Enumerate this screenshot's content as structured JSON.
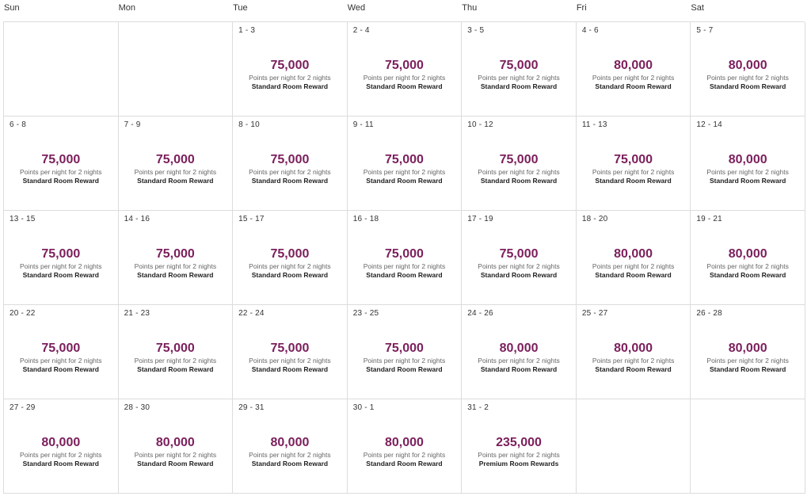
{
  "weekdays": [
    "Sun",
    "Mon",
    "Tue",
    "Wed",
    "Thu",
    "Fri",
    "Sat"
  ],
  "caption": "Points per night for 2 nights",
  "weeks": [
    [
      null,
      null,
      {
        "range": "1 - 3",
        "points": "75,000",
        "reward": "Standard Room Reward"
      },
      {
        "range": "2 - 4",
        "points": "75,000",
        "reward": "Standard Room Reward"
      },
      {
        "range": "3 - 5",
        "points": "75,000",
        "reward": "Standard Room Reward"
      },
      {
        "range": "4 - 6",
        "points": "80,000",
        "reward": "Standard Room Reward"
      },
      {
        "range": "5 - 7",
        "points": "80,000",
        "reward": "Standard Room Reward"
      }
    ],
    [
      {
        "range": "6 - 8",
        "points": "75,000",
        "reward": "Standard Room Reward"
      },
      {
        "range": "7 - 9",
        "points": "75,000",
        "reward": "Standard Room Reward"
      },
      {
        "range": "8 - 10",
        "points": "75,000",
        "reward": "Standard Room Reward"
      },
      {
        "range": "9 - 11",
        "points": "75,000",
        "reward": "Standard Room Reward"
      },
      {
        "range": "10 - 12",
        "points": "75,000",
        "reward": "Standard Room Reward"
      },
      {
        "range": "11 - 13",
        "points": "75,000",
        "reward": "Standard Room Reward"
      },
      {
        "range": "12 - 14",
        "points": "80,000",
        "reward": "Standard Room Reward"
      }
    ],
    [
      {
        "range": "13 - 15",
        "points": "75,000",
        "reward": "Standard Room Reward"
      },
      {
        "range": "14 - 16",
        "points": "75,000",
        "reward": "Standard Room Reward"
      },
      {
        "range": "15 - 17",
        "points": "75,000",
        "reward": "Standard Room Reward"
      },
      {
        "range": "16 - 18",
        "points": "75,000",
        "reward": "Standard Room Reward"
      },
      {
        "range": "17 - 19",
        "points": "75,000",
        "reward": "Standard Room Reward"
      },
      {
        "range": "18 - 20",
        "points": "80,000",
        "reward": "Standard Room Reward"
      },
      {
        "range": "19 - 21",
        "points": "80,000",
        "reward": "Standard Room Reward"
      }
    ],
    [
      {
        "range": "20 - 22",
        "points": "75,000",
        "reward": "Standard Room Reward"
      },
      {
        "range": "21 - 23",
        "points": "75,000",
        "reward": "Standard Room Reward"
      },
      {
        "range": "22 - 24",
        "points": "75,000",
        "reward": "Standard Room Reward"
      },
      {
        "range": "23 - 25",
        "points": "75,000",
        "reward": "Standard Room Reward"
      },
      {
        "range": "24 - 26",
        "points": "80,000",
        "reward": "Standard Room Reward"
      },
      {
        "range": "25 - 27",
        "points": "80,000",
        "reward": "Standard Room Reward"
      },
      {
        "range": "26 - 28",
        "points": "80,000",
        "reward": "Standard Room Reward"
      }
    ],
    [
      {
        "range": "27 - 29",
        "points": "80,000",
        "reward": "Standard Room Reward"
      },
      {
        "range": "28 - 30",
        "points": "80,000",
        "reward": "Standard Room Reward"
      },
      {
        "range": "29 - 31",
        "points": "80,000",
        "reward": "Standard Room Reward"
      },
      {
        "range": "30 - 1",
        "points": "80,000",
        "reward": "Standard Room Reward"
      },
      {
        "range": "31 - 2",
        "points": "235,000",
        "reward": "Premium Room Rewards"
      },
      null,
      null
    ]
  ],
  "colors": {
    "points": "#7b1f5c",
    "border": "#dcdcdc"
  }
}
